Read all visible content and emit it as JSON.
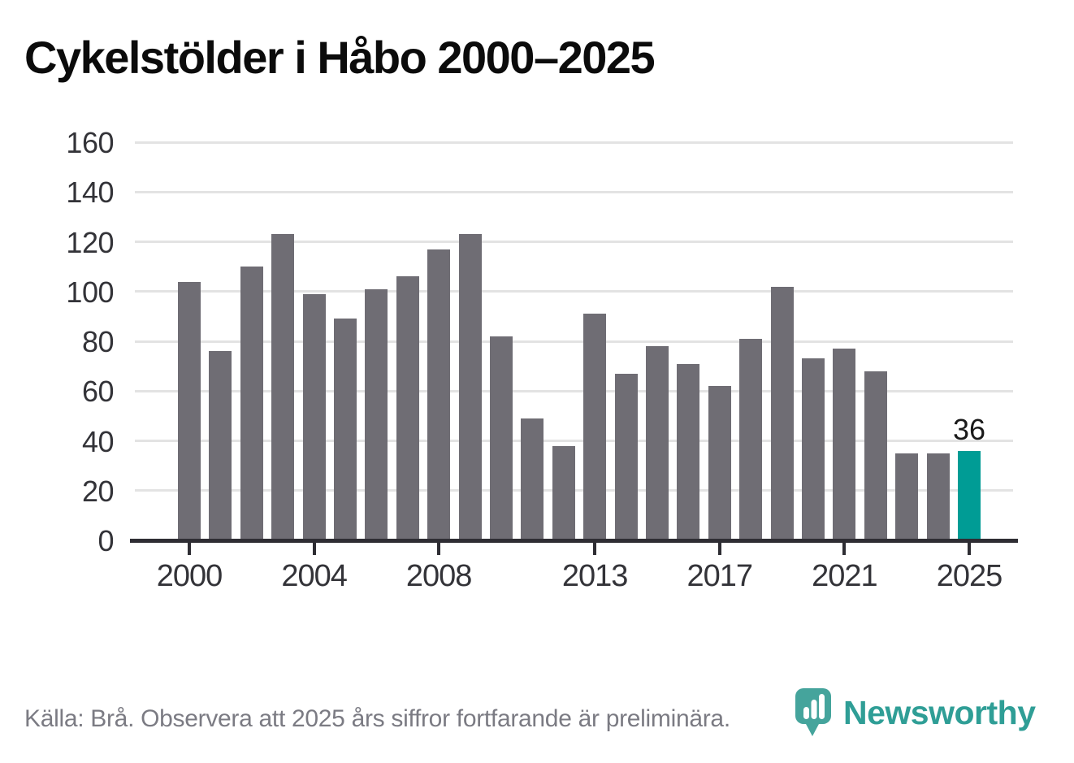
{
  "title": "Cykelstölder i Håbo 2000–2025",
  "footer": {
    "source_note": "Källa: Brå. Observera att 2025 års siffror fortfarande är preliminära."
  },
  "branding": {
    "logo_text": "Newsworthy",
    "logo_icon": "bar-chart-bubble-icon",
    "wordmark_color": "#2f9e96",
    "icon_color": "#45a49c"
  },
  "colors": {
    "bar": "#6f6d74",
    "highlight_bar": "#009c95",
    "gridline": "#e3e3e3",
    "axis": "#2e2d33",
    "axis_label": "#333338",
    "title": "#0b0b0b",
    "footer_text": "#7b7b83",
    "value_label": "#1a1a1a"
  },
  "chart_data": {
    "type": "bar",
    "title": "Cykelstölder i Håbo 2000–2025",
    "xlabel": "",
    "ylabel": "",
    "x": [
      2000,
      2001,
      2002,
      2003,
      2004,
      2005,
      2006,
      2007,
      2008,
      2009,
      2010,
      2011,
      2012,
      2013,
      2014,
      2015,
      2016,
      2017,
      2018,
      2019,
      2020,
      2021,
      2022,
      2023,
      2024,
      2025
    ],
    "values": [
      104,
      76,
      110,
      123,
      99,
      89,
      101,
      106,
      117,
      123,
      82,
      49,
      38,
      91,
      67,
      78,
      71,
      62,
      81,
      102,
      73,
      77,
      68,
      35,
      35,
      36
    ],
    "highlight_x": 2025,
    "annotation": {
      "x": 2025,
      "text": "36"
    },
    "ylim": [
      0,
      160
    ],
    "ytick_step": 20,
    "x_ticks": [
      2000,
      2004,
      2008,
      2013,
      2017,
      2021,
      2025
    ],
    "grid": true,
    "legend": false
  }
}
